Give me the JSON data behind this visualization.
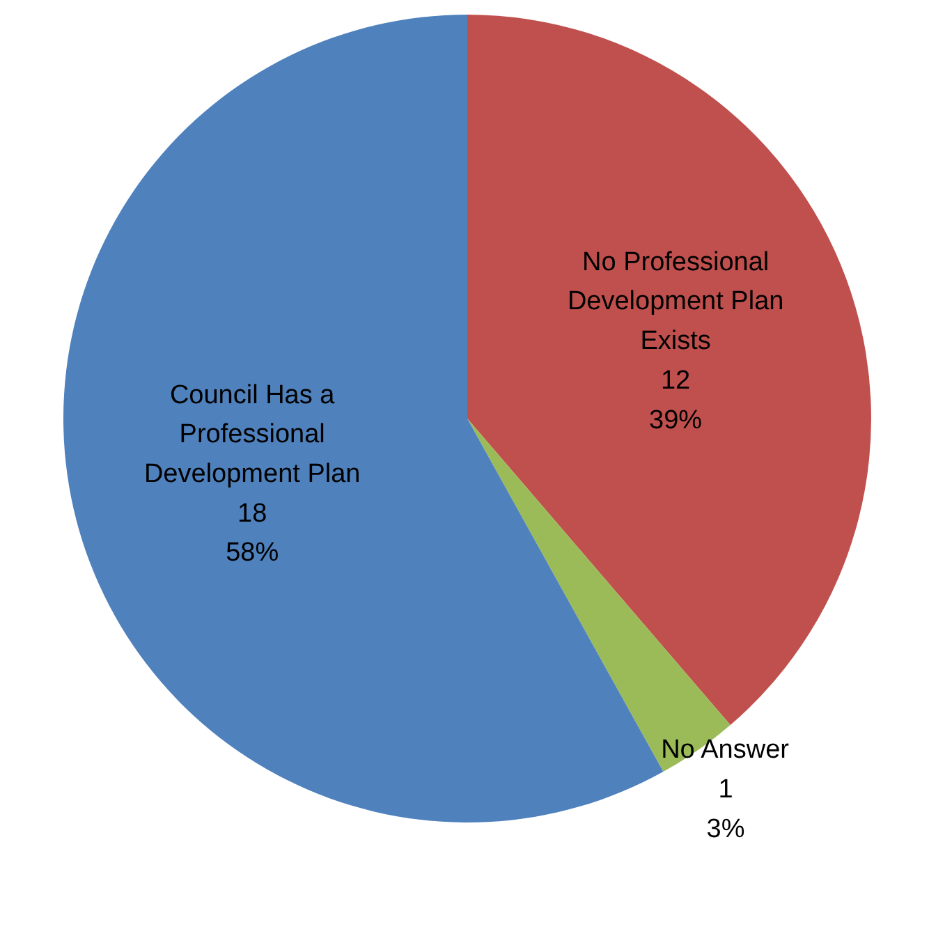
{
  "chart_data": {
    "type": "pie",
    "categories": [
      "No Professional Development Plan Exists",
      "No Answer",
      "Council Has a Professional Development Plan"
    ],
    "values": [
      12,
      1,
      18
    ],
    "colors": [
      "#c0504d",
      "#9bbb59",
      "#4f81bd"
    ],
    "value_labels": [
      "12\n39%",
      "1\n3%",
      "18\n58%"
    ]
  }
}
